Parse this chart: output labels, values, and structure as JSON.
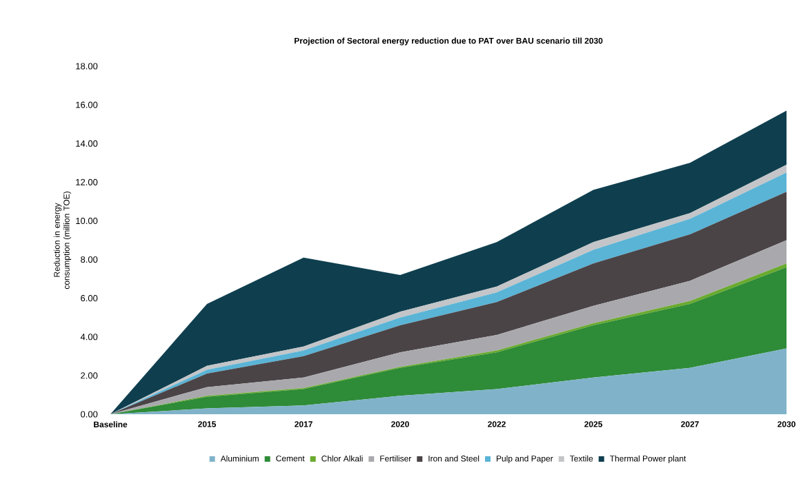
{
  "chart_data": {
    "type": "area",
    "stacked": true,
    "title": "Projection of Sectoral energy reduction due to PAT over BAU scenario till 2030",
    "ylabel": "Reduction in energy consumption (million TOE)",
    "categories": [
      "Baseline",
      "2015",
      "2017",
      "2020",
      "2022",
      "2025",
      "2027",
      "2030"
    ],
    "ylim": [
      0,
      18
    ],
    "yticks": [
      {
        "value": 0,
        "label": "0.00"
      },
      {
        "value": 2,
        "label": "2.00"
      },
      {
        "value": 4,
        "label": "4.00"
      },
      {
        "value": 6,
        "label": "6.00"
      },
      {
        "value": 8,
        "label": "8.00"
      },
      {
        "value": 10,
        "label": "10.00"
      },
      {
        "value": 12,
        "label": "12.00"
      },
      {
        "value": 14,
        "label": "14.00"
      },
      {
        "value": 16,
        "label": "16.00"
      },
      {
        "value": 18,
        "label": "18.00"
      }
    ],
    "legend": "bottom",
    "series": [
      {
        "name": "Aluminium",
        "color": "#80b3c9",
        "values": [
          0,
          0.3,
          0.45,
          0.95,
          1.3,
          1.9,
          2.4,
          3.4
        ]
      },
      {
        "name": "Cement",
        "color": "#2e8b37",
        "values": [
          0,
          0.6,
          0.85,
          1.45,
          1.9,
          2.7,
          3.3,
          4.2
        ]
      },
      {
        "name": "Chlor Alkali",
        "color": "#6aaa2e",
        "values": [
          0,
          0.05,
          0.05,
          0.05,
          0.1,
          0.1,
          0.15,
          0.2
        ]
      },
      {
        "name": "Fertiliser",
        "color": "#a9a9ad",
        "values": [
          0,
          0.45,
          0.55,
          0.75,
          0.8,
          0.9,
          1.05,
          1.2
        ]
      },
      {
        "name": "Iron and Steel",
        "color": "#4a4447",
        "values": [
          0,
          0.7,
          1.1,
          1.4,
          1.7,
          2.2,
          2.4,
          2.5
        ]
      },
      {
        "name": "Pulp and Paper",
        "color": "#5ab4d6",
        "values": [
          0,
          0.2,
          0.3,
          0.4,
          0.5,
          0.7,
          0.8,
          1.0
        ]
      },
      {
        "name": "Textile",
        "color": "#c3c5c8",
        "values": [
          0,
          0.2,
          0.2,
          0.3,
          0.3,
          0.4,
          0.3,
          0.4
        ]
      },
      {
        "name": "Thermal Power plant",
        "color": "#0f3f4f",
        "values": [
          0,
          3.2,
          4.6,
          1.9,
          2.3,
          2.7,
          2.6,
          2.8
        ]
      }
    ]
  }
}
